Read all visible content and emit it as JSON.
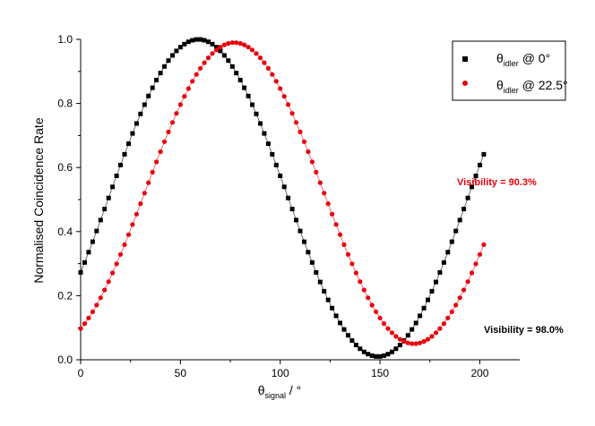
{
  "chart_data": {
    "type": "scatter",
    "xlabel_main": "θ",
    "xlabel_sub": "signal",
    "xlabel_unit": " / °",
    "ylabel": "Normalised Coincidence Rate",
    "xlim": [
      0,
      220
    ],
    "ylim": [
      0,
      1.0
    ],
    "xticks": [
      "0",
      "50",
      "100",
      "150",
      "200"
    ],
    "yticks": [
      "0.0",
      "0.2",
      "0.4",
      "0.6",
      "0.8",
      "1.0"
    ],
    "legend_position": "top-right",
    "series": [
      {
        "name_main": "θ",
        "name_sub": "idler",
        "name_suffix": " @ 0°",
        "color": "#000000",
        "marker": "square",
        "model": {
          "min": 0.01,
          "max": 1.0,
          "max_at_deg": 59,
          "period_deg": 90
        },
        "x_start": 0,
        "x_end": 202,
        "x_step": 2
      },
      {
        "name_main": "θ",
        "name_sub": "idler",
        "name_suffix": " @ 22.5°",
        "color": "#e8000b",
        "marker": "circle",
        "model": {
          "min": 0.05,
          "max": 0.99,
          "max_at_deg": 77,
          "period_deg": 90
        },
        "x_start": 0,
        "x_end": 202,
        "x_step": 2
      }
    ],
    "annotations": [
      {
        "text": "Visibility = 90.3%",
        "color": "#e8000b"
      },
      {
        "text": "Visibility = 98.0%",
        "color": "#000000"
      }
    ]
  }
}
